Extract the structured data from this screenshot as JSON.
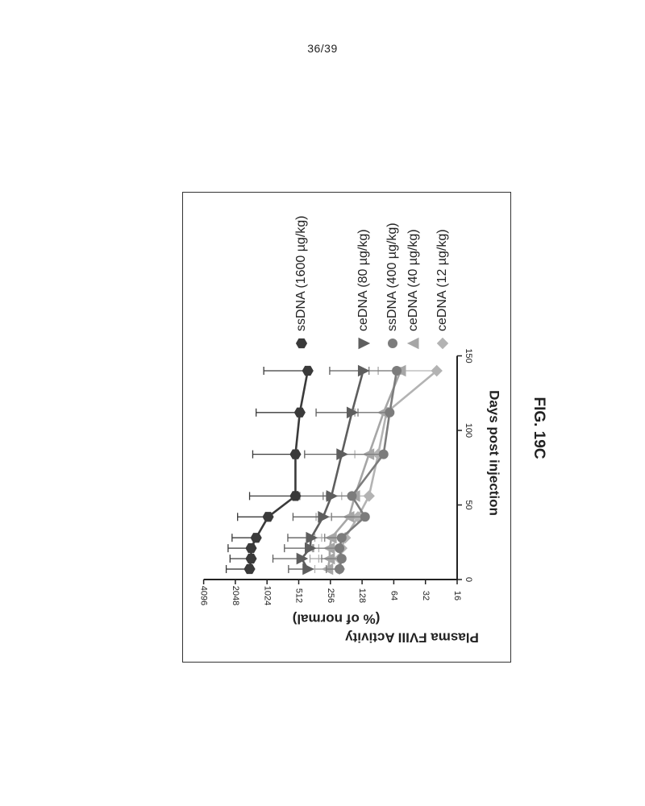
{
  "page": {
    "number": "36/39",
    "figure_label": "FIG. 19C"
  },
  "chart_data": {
    "type": "line",
    "title": "",
    "xlabel": "Days post injection",
    "ylabel_line1": "Plasma FVIII Activity",
    "ylabel_line2": "(% of normal)",
    "xlim": [
      0,
      150
    ],
    "ylim": [
      16,
      4096
    ],
    "y_scale": "log2",
    "x_ticks": [
      0,
      50,
      100,
      150
    ],
    "y_ticks": [
      16,
      32,
      64,
      128,
      256,
      512,
      1024,
      2048,
      4096
    ],
    "legend_position": "right",
    "series": [
      {
        "name": "ssDNA (1600 µg/kg)",
        "marker": "hexagon",
        "color": "#3a3a3a",
        "x": [
          7,
          14,
          21,
          28,
          42,
          56,
          84,
          112,
          140
        ],
        "y": [
          1500,
          1450,
          1450,
          1300,
          1000,
          550,
          550,
          500,
          420
        ],
        "error_upper": [
          2500,
          2300,
          2400,
          2200,
          1950,
          1500,
          1400,
          1300,
          1100
        ]
      },
      {
        "name": "ceDNA (80 µg/kg)",
        "marker": "triangle-down",
        "color": "#5e5e5e",
        "x": [
          7,
          14,
          21,
          28,
          42,
          56,
          84,
          112,
          140
        ],
        "y": [
          420,
          480,
          400,
          390,
          300,
          250,
          200,
          160,
          125
        ],
        "error_upper": [
          640,
          900,
          700,
          650,
          580,
          500,
          450,
          350,
          260
        ]
      },
      {
        "name": "ssDNA (400 µg/kg)",
        "marker": "circle",
        "color": "#7c7c7c",
        "x": [
          7,
          14,
          21,
          28,
          42,
          56,
          84,
          112,
          140
        ],
        "y": [
          210,
          200,
          210,
          200,
          120,
          160,
          80,
          70,
          60
        ],
        "error_upper": [
          280,
          310,
          370,
          290,
          250,
          300,
          200,
          140,
          110
        ]
      },
      {
        "name": "ceDNA (40 µg/kg)",
        "marker": "triangle-up",
        "color": "#a6a6a6",
        "x": [
          7,
          14,
          21,
          28,
          42,
          56,
          84,
          112,
          140
        ],
        "y": [
          270,
          260,
          260,
          250,
          170,
          150,
          110,
          80,
          55
        ],
        "error_upper": [
          450,
          400,
          380,
          360,
          350,
          280,
          220,
          150,
          90
        ]
      },
      {
        "name": "ceDNA (12 µg/kg)",
        "marker": "diamond",
        "color": "#b3b3b3",
        "x": [
          7,
          14,
          21,
          28,
          42,
          56,
          84,
          112,
          140
        ],
        "y": [
          210,
          210,
          200,
          185,
          140,
          110,
          90,
          75,
          25
        ],
        "error_upper": [
          360,
          330,
          330,
          310,
          250,
          200,
          150,
          150,
          55
        ]
      }
    ]
  }
}
